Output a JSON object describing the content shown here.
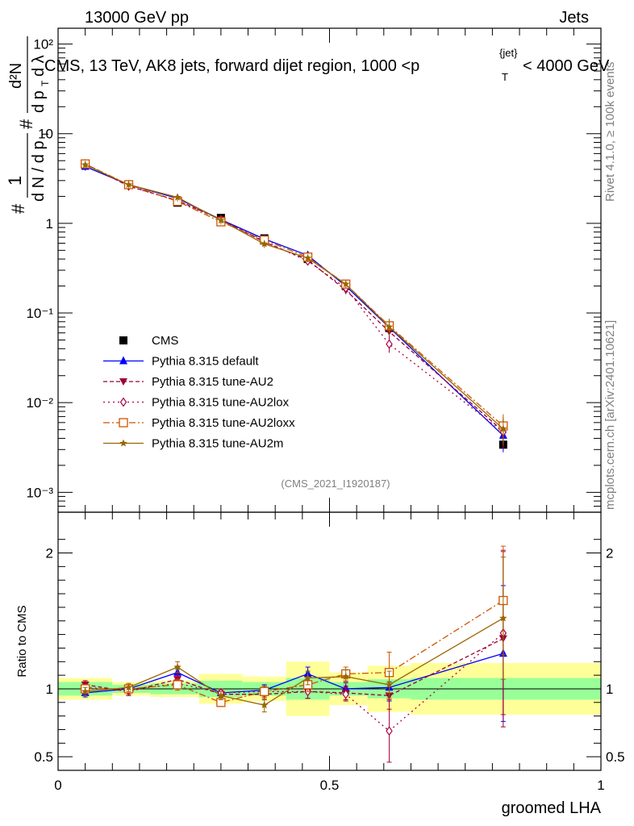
{
  "header": {
    "left": "13000 GeV pp",
    "right": "Jets"
  },
  "title": "CMS, 13 TeV, AK8 jets, forward dijet region, 1000 <p",
  "title_sup": "{jet}",
  "title_sub": "T",
  "title_tail": "< 4000 GeV",
  "side_labels": {
    "rivet": "Rivet 4.1.0, ≥ 100k events",
    "mcplots": "mcplots.cern.ch [arXiv:2401.10621]"
  },
  "watermark": "(CMS_2021_I1920187)",
  "colors": {
    "cms": "#000000",
    "default": "#0000ff",
    "au2": "#990033",
    "au2lox": "#aa0044",
    "au2loxx": "#cc5500",
    "au2m": "#996600",
    "band_inner": "#99ff99",
    "band_outer": "#ffff99"
  },
  "chart_data": [
    {
      "type": "line",
      "panel": "main",
      "ylabel": "1/(dN/dpT) d²N/(dpT dλ)",
      "yscale": "log",
      "ylim": [
        0.0006,
        150
      ],
      "yticks": [
        "10⁻³",
        "10⁻²",
        "10⁻¹",
        "1",
        "10",
        "10²"
      ],
      "xlim": [
        0,
        1
      ],
      "x": [
        0.05,
        0.13,
        0.22,
        0.3,
        0.38,
        0.46,
        0.53,
        0.61,
        0.82
      ],
      "bin_edges": [
        0.0,
        0.1,
        0.17,
        0.26,
        0.34,
        0.42,
        0.5,
        0.57,
        0.65,
        1.0
      ],
      "series": [
        {
          "name": "CMS",
          "key": "cms",
          "values": [
            4.5,
            2.7,
            1.7,
            1.15,
            0.68,
            0.4,
            0.2,
            0.068,
            0.0034
          ],
          "marker": "square"
        },
        {
          "name": "Pythia 8.315 default",
          "key": "default",
          "values": [
            4.3,
            2.7,
            1.9,
            1.1,
            0.67,
            0.44,
            0.2,
            0.069,
            0.0043
          ],
          "marker": "triangle-up"
        },
        {
          "name": "Pythia 8.315 tune-AU2",
          "key": "au2",
          "values": [
            4.6,
            2.6,
            1.8,
            1.1,
            0.62,
            0.39,
            0.18,
            0.062,
            0.0048
          ],
          "marker": "triangle-down"
        },
        {
          "name": "Pythia 8.315 tune-AU2lox",
          "key": "au2lox",
          "values": [
            4.6,
            2.6,
            1.78,
            1.1,
            0.63,
            0.38,
            0.19,
            0.045,
            0.0047
          ],
          "marker": "diamond"
        },
        {
          "name": "Pythia 8.315 tune-AU2loxx",
          "key": "au2loxx",
          "values": [
            4.6,
            2.7,
            1.76,
            1.04,
            0.65,
            0.42,
            0.21,
            0.072,
            0.0055
          ],
          "marker": "open-square"
        },
        {
          "name": "Pythia 8.315 tune-AU2m",
          "key": "au2m",
          "values": [
            4.5,
            2.7,
            1.95,
            1.08,
            0.59,
            0.41,
            0.21,
            0.07,
            0.0051
          ],
          "marker": "star"
        }
      ]
    },
    {
      "type": "line",
      "panel": "ratio",
      "ylabel": "Ratio to CMS",
      "ylim": [
        0.4,
        2.3
      ],
      "yticks": [
        0.5,
        1,
        2
      ],
      "xlabel": "groomed LHA",
      "xticks": [
        0,
        0.5,
        1
      ],
      "band_inner_halfwidth": [
        0.05,
        0.03,
        0.04,
        0.06,
        0.05,
        0.08,
        0.05,
        0.07,
        0.08
      ],
      "band_outer_halfwidth": [
        0.08,
        0.05,
        0.06,
        0.11,
        0.09,
        0.2,
        0.12,
        0.17,
        0.19
      ],
      "series": [
        {
          "name": "Pythia 8.315 default",
          "key": "default",
          "values": [
            0.97,
            1.0,
            1.12,
            0.97,
            0.99,
            1.11,
            1.0,
            1.01,
            1.26
          ],
          "err": [
            0.03,
            0.03,
            0.04,
            0.03,
            0.04,
            0.05,
            0.05,
            0.1,
            0.5
          ]
        },
        {
          "name": "Pythia 8.315 tune-AU2",
          "key": "au2",
          "values": [
            1.03,
            0.98,
            1.07,
            0.96,
            0.96,
            0.98,
            0.97,
            0.95,
            1.37
          ],
          "err": [
            0.03,
            0.03,
            0.04,
            0.03,
            0.04,
            0.05,
            0.05,
            0.1,
            0.65
          ]
        },
        {
          "name": "Pythia 8.315 tune-AU2lox",
          "key": "au2lox",
          "values": [
            1.01,
            0.99,
            1.04,
            0.97,
            0.98,
            0.98,
            0.96,
            0.69,
            1.41
          ],
          "err": [
            0.03,
            0.03,
            0.04,
            0.03,
            0.04,
            0.05,
            0.05,
            0.23,
            0.6
          ]
        },
        {
          "name": "Pythia 8.315 tune-AU2loxx",
          "key": "au2loxx",
          "values": [
            1.0,
            1.0,
            1.03,
            0.9,
            0.98,
            1.03,
            1.11,
            1.12,
            1.65
          ],
          "err": [
            0.03,
            0.03,
            0.04,
            0.03,
            0.04,
            0.05,
            0.05,
            0.15,
            0.4
          ]
        },
        {
          "name": "Pythia 8.315 tune-AU2m",
          "key": "au2m",
          "values": [
            0.98,
            1.01,
            1.16,
            0.95,
            0.88,
            1.08,
            1.09,
            1.03,
            1.52
          ],
          "err": [
            0.03,
            0.03,
            0.04,
            0.03,
            0.05,
            0.05,
            0.05,
            0.1,
            0.45
          ]
        }
      ]
    }
  ]
}
